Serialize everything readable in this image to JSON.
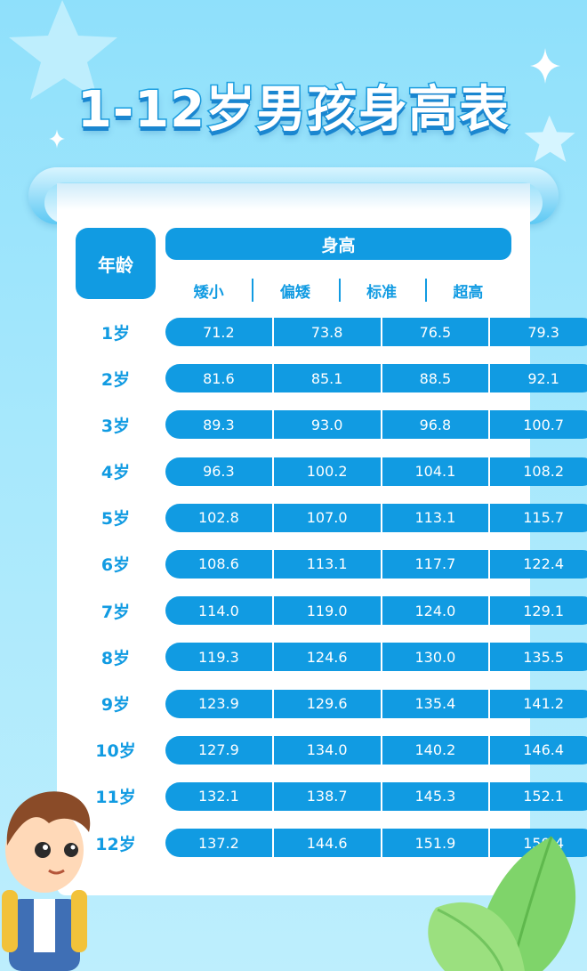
{
  "title": "1-12岁男孩身高表",
  "table": {
    "age_header": "年龄",
    "height_header": "身高",
    "categories": [
      "矮小",
      "偏矮",
      "标准",
      "超高"
    ],
    "rows": [
      {
        "age": "1岁",
        "values": [
          "71.2",
          "73.8",
          "76.5",
          "79.3"
        ]
      },
      {
        "age": "2岁",
        "values": [
          "81.6",
          "85.1",
          "88.5",
          "92.1"
        ]
      },
      {
        "age": "3岁",
        "values": [
          "89.3",
          "93.0",
          "96.8",
          "100.7"
        ]
      },
      {
        "age": "4岁",
        "values": [
          "96.3",
          "100.2",
          "104.1",
          "108.2"
        ]
      },
      {
        "age": "5岁",
        "values": [
          "102.8",
          "107.0",
          "113.1",
          "115.7"
        ]
      },
      {
        "age": "6岁",
        "values": [
          "108.6",
          "113.1",
          "117.7",
          "122.4"
        ]
      },
      {
        "age": "7岁",
        "values": [
          "114.0",
          "119.0",
          "124.0",
          "129.1"
        ]
      },
      {
        "age": "8岁",
        "values": [
          "119.3",
          "124.6",
          "130.0",
          "135.5"
        ]
      },
      {
        "age": "9岁",
        "values": [
          "123.9",
          "129.6",
          "135.4",
          "141.2"
        ]
      },
      {
        "age": "10岁",
        "values": [
          "127.9",
          "134.0",
          "140.2",
          "146.4"
        ]
      },
      {
        "age": "11岁",
        "values": [
          "132.1",
          "138.7",
          "145.3",
          "152.1"
        ]
      },
      {
        "age": "12岁",
        "values": [
          "137.2",
          "144.6",
          "151.9",
          "159.4"
        ]
      }
    ]
  },
  "colors": {
    "primary": "#119be2",
    "background": "#a7e8fc",
    "card": "#ffffff"
  }
}
